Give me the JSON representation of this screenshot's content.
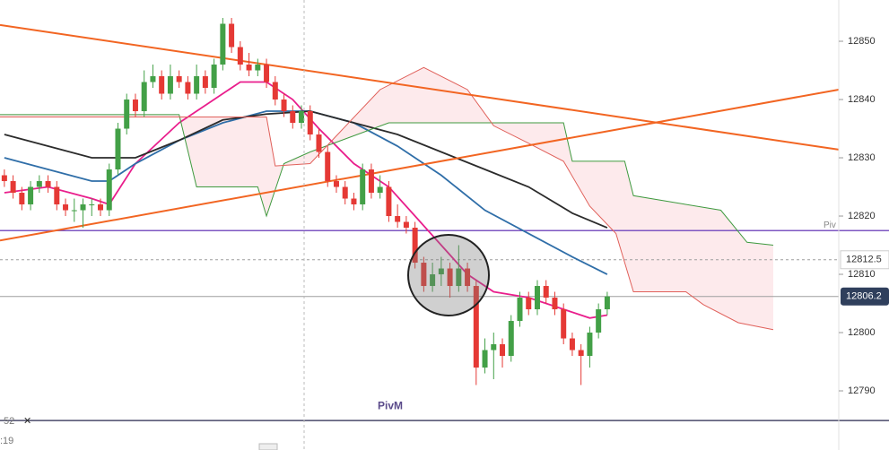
{
  "chart_data": {
    "type": "candlestick",
    "xlim": [
      -0.5,
      95.5
    ],
    "ylim": [
      12779.85,
      12857.08
    ],
    "yticks": [
      12790,
      12800,
      12810,
      12820,
      12830,
      12840,
      12850
    ],
    "up_color": "#43a047",
    "down_color": "#e53935",
    "open": [
      12827,
      12826,
      12824,
      12822,
      12825,
      12826,
      12825,
      12822,
      12821,
      12821,
      12822,
      12822,
      12821,
      12828,
      12835,
      12840,
      12838,
      12843,
      12844,
      12841,
      12844,
      12843,
      12841,
      12844,
      12842,
      12846,
      12853,
      12849,
      12846,
      12845,
      12846,
      12843,
      12840,
      12838,
      12836,
      12838,
      12834,
      12831,
      12826,
      12825,
      12823,
      12822,
      12828,
      12824,
      12825,
      12820,
      12819,
      12818,
      12812,
      12808,
      12810,
      12811,
      12808,
      12811,
      12808,
      12794,
      12797,
      12798,
      12796,
      12802,
      12806,
      12804,
      12808,
      12806,
      12804,
      12799,
      12797,
      12796,
      12800,
      12804
    ],
    "high": [
      12828,
      12827,
      12825,
      12826,
      12827,
      12827,
      12826,
      12823,
      12823,
      12823,
      12823,
      12823,
      12829,
      12836,
      12841,
      12841,
      12845,
      12846,
      12845,
      12846,
      12845,
      12844,
      12846,
      12845,
      12847,
      12854,
      12854,
      12850,
      12848,
      12847,
      12847,
      12844,
      12841,
      12839,
      12839,
      12839,
      12835,
      12832,
      12827,
      12826,
      12824,
      12829,
      12829,
      12827,
      12826,
      12822,
      12820,
      12819,
      12813,
      12812,
      12813,
      12812,
      12815,
      12812,
      12809,
      12799,
      12800,
      12799,
      12803,
      12807,
      12807,
      12809,
      12809,
      12807,
      12805,
      12800,
      12798,
      12801,
      12805,
      12807
    ],
    "low": [
      12825,
      12823,
      12821,
      12821,
      12824,
      12824,
      12821,
      12820,
      12819,
      12818,
      12820,
      12820,
      12820,
      12827,
      12834,
      12837,
      12837,
      12842,
      12840,
      12840,
      12842,
      12840,
      12840,
      12841,
      12841,
      12845,
      12848,
      12845,
      12844,
      12844,
      12842,
      12839,
      12837,
      12835,
      12835,
      12833,
      12830,
      12825,
      12824,
      12822,
      12821,
      12821,
      12823,
      12823,
      12819,
      12818,
      12817,
      12811,
      12807,
      12807,
      12808,
      12806,
      12807,
      12807,
      12791,
      12793,
      12792,
      12794,
      12795,
      12801,
      12803,
      12803,
      12805,
      12803,
      12798,
      12796,
      12791,
      12794,
      12799,
      12803
    ],
    "close": [
      12826,
      12824,
      12822,
      12825,
      12826,
      12825,
      12822,
      12821,
      12821,
      12822,
      12822,
      12821,
      12828,
      12835,
      12840,
      12838,
      12843,
      12844,
      12841,
      12844,
      12843,
      12841,
      12844,
      12842,
      12846,
      12853,
      12849,
      12846,
      12845,
      12846,
      12843,
      12840,
      12838,
      12836,
      12838,
      12834,
      12831,
      12826,
      12825,
      12823,
      12822,
      12828,
      12824,
      12825,
      12820,
      12819,
      12818,
      12812,
      12808,
      12810,
      12811,
      12808,
      12811,
      12808,
      12794,
      12797,
      12798,
      12796,
      12802,
      12806,
      12804,
      12808,
      12806,
      12804,
      12799,
      12797,
      12796,
      12800,
      12804,
      12806.2
    ],
    "cloud_color": "#fdeaec",
    "lines": [
      {
        "color": "#e91e8c",
        "x": [
          0,
          5,
          10,
          12,
          15,
          20,
          24,
          27,
          30,
          33,
          36,
          40,
          44,
          47,
          50,
          53,
          56,
          60,
          64,
          67,
          69
        ],
        "values": [
          12824,
          12825,
          12823,
          12822,
          12829,
          12836,
          12840,
          12843,
          12843,
          12840,
          12835,
          12829,
          12825,
          12820,
          12815,
          12810,
          12807,
          12806,
          12804,
          12802.5,
          12803
        ]
      },
      {
        "color": "#2f6ea8",
        "x": [
          0,
          5,
          10,
          12,
          15,
          20,
          25,
          30,
          35,
          40,
          45,
          50,
          55,
          60,
          65,
          69
        ],
        "values": [
          12830,
          12828,
          12826,
          12826,
          12829,
          12833,
          12836,
          12838,
          12838,
          12836,
          12832,
          12827,
          12821,
          12817,
          12813,
          12810
        ]
      },
      {
        "color": "#2b2b2b",
        "x": [
          0,
          5,
          10,
          15,
          20,
          25,
          30,
          35,
          40,
          45,
          50,
          55,
          60,
          65,
          69
        ],
        "values": [
          12834,
          12832,
          12830,
          12830,
          12833,
          12836.5,
          12837.5,
          12838,
          12836,
          12834,
          12831,
          12828,
          12825,
          12820.5,
          12818
        ]
      },
      {
        "color": "#3f9a3f",
        "x": [
          -0.5,
          20,
          22,
          29,
          30,
          32,
          35,
          44,
          64,
          65,
          71,
          72,
          82,
          85,
          88
        ],
        "values": [
          12837.4,
          12837.4,
          12825,
          12825,
          12820,
          12829,
          12831,
          12836,
          12836,
          12829.4,
          12829.4,
          12823.5,
          12821,
          12815.5,
          12815
        ]
      },
      {
        "color": "#e0605a",
        "x": [
          -0.5,
          12,
          30,
          31,
          35,
          43,
          48,
          53,
          56,
          60,
          64,
          67,
          70,
          72,
          78,
          80,
          84,
          88
        ],
        "values": [
          12837,
          12837,
          12837,
          12828.6,
          12829,
          12841.7,
          12845.5,
          12841.7,
          12835.5,
          12832.5,
          12829.4,
          12821.7,
          12817,
          12807,
          12807,
          12804.8,
          12801.7,
          12800.5
        ]
      },
      {
        "color": "#f26522",
        "x": [
          -0.5,
          95.5
        ],
        "values": [
          12852.8,
          12831.4
        ]
      },
      {
        "color": "#f26522",
        "x": [
          -0.5,
          95.5
        ],
        "values": [
          12815.8,
          12841.7
        ]
      }
    ],
    "levels": [
      {
        "value": 12817.5,
        "label": "Piv",
        "color": "#7e57c2"
      },
      {
        "value": 12784.9,
        "label": "PivM",
        "color": "#4a4a6a"
      },
      {
        "value": 12812.5,
        "label": "12812.5",
        "color": "#9e9e9e",
        "dashed": true
      },
      {
        "value": 12806.2,
        "label": "12806.2",
        "color": "#9e9e9e",
        "highlight": "#2f3f5c"
      }
    ],
    "overlay_texts": [
      "52",
      ":19"
    ]
  }
}
